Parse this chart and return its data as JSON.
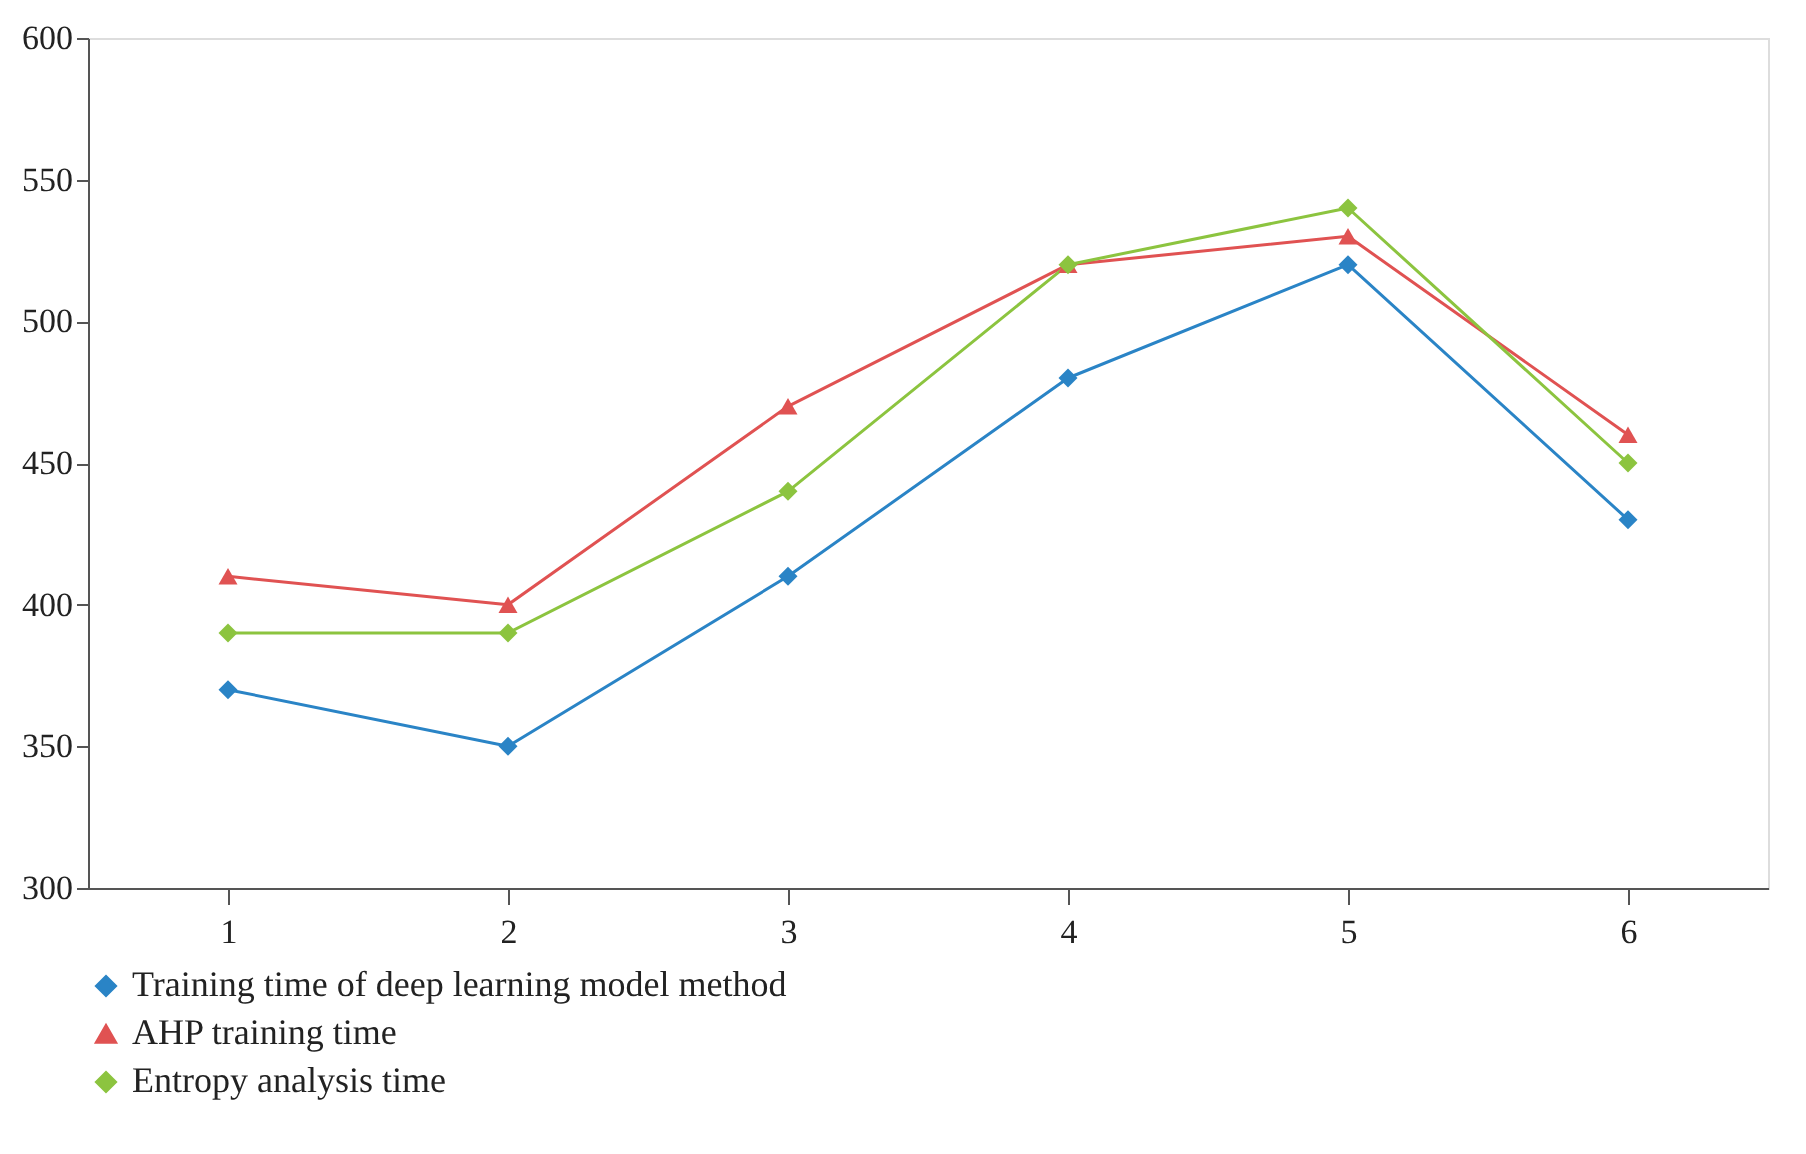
{
  "chart_data": {
    "type": "line",
    "categories": [
      "1",
      "2",
      "3",
      "4",
      "5",
      "6"
    ],
    "series": [
      {
        "name": "Training time of deep learning model method",
        "color": "#2a84c6",
        "marker": "diamond",
        "values": [
          370,
          350,
          410,
          480,
          520,
          430
        ]
      },
      {
        "name": "AHP training time",
        "color": "#e05252",
        "marker": "triangle",
        "values": [
          410,
          400,
          470,
          520,
          530,
          460
        ]
      },
      {
        "name": "Entropy analysis time",
        "color": "#8cc43f",
        "marker": "diamond",
        "values": [
          390,
          390,
          440,
          520,
          540,
          450
        ]
      }
    ],
    "ylim": [
      300,
      600
    ],
    "yticks": [
      300,
      350,
      400,
      450,
      500,
      550,
      600
    ],
    "grid": false,
    "legend": "bottom left"
  }
}
